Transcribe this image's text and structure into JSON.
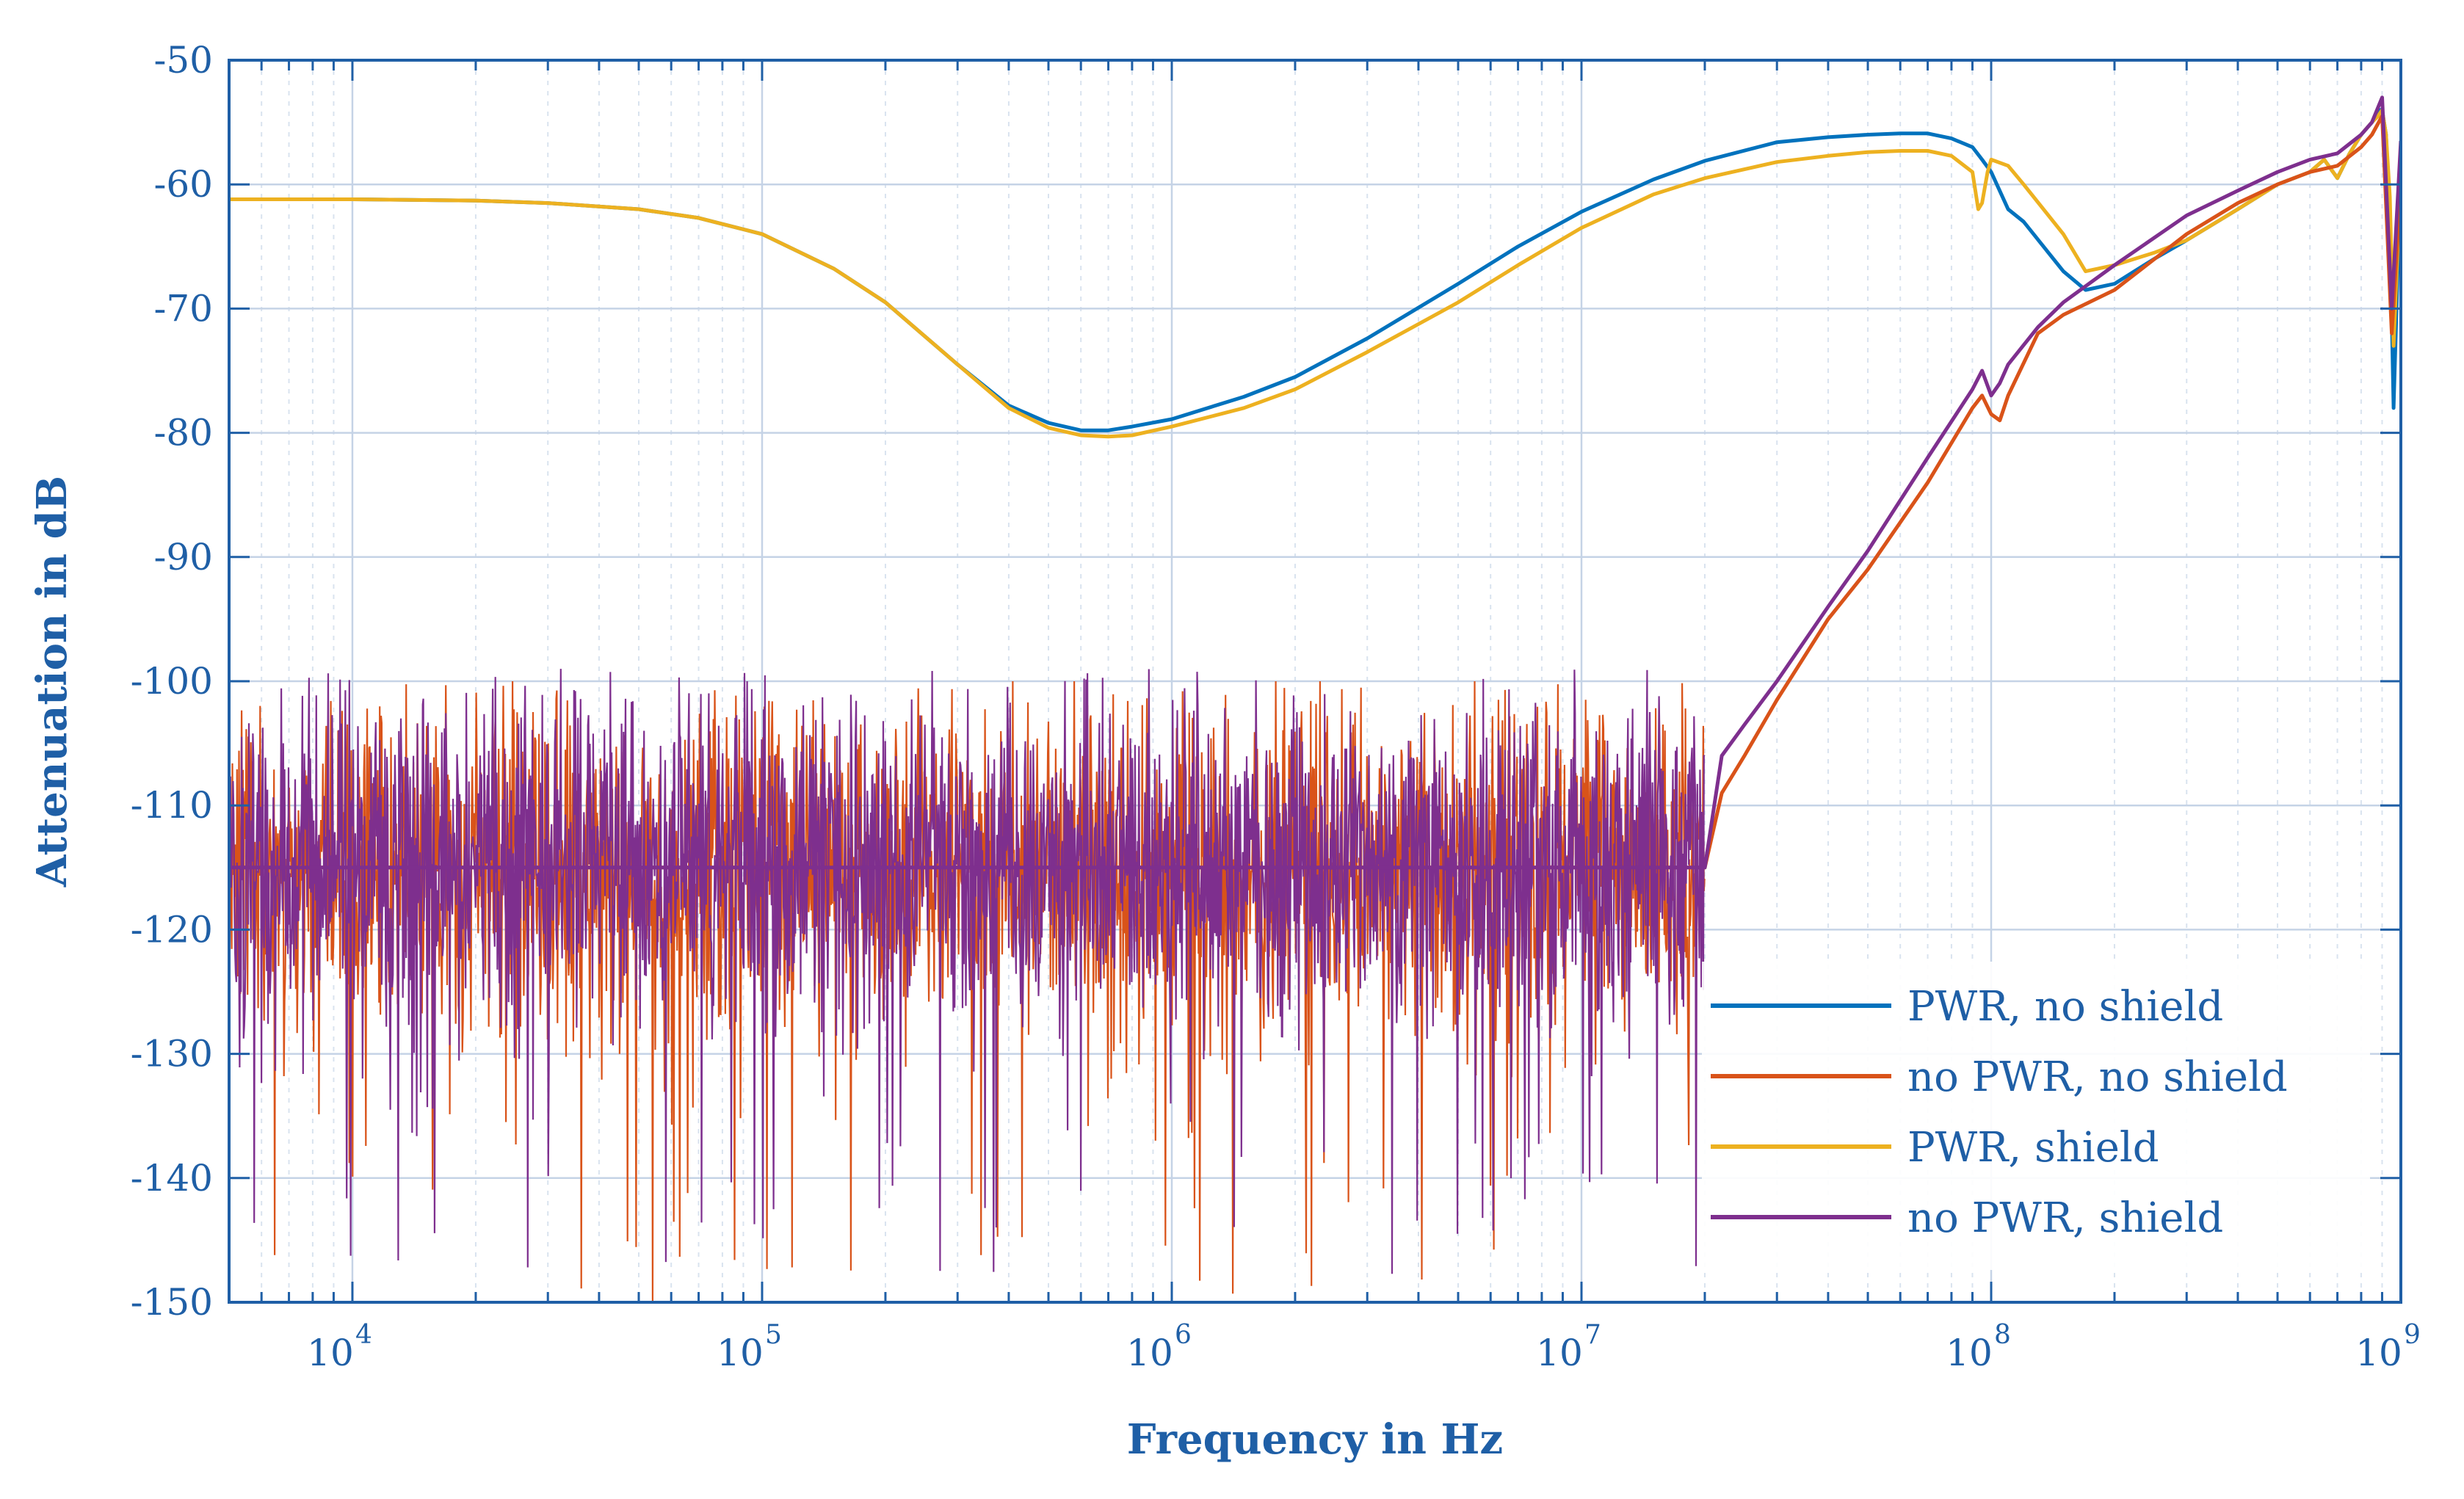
{
  "chart_data": {
    "type": "line",
    "title": "",
    "xlabel": "Frequency in Hz",
    "ylabel": "Attenuation in dB",
    "xscale": "log",
    "xlim": [
      5000,
      1000000000
    ],
    "ylim": [
      -150,
      -50
    ],
    "xticks": [
      {
        "base": "10",
        "exp": "4",
        "value": 10000
      },
      {
        "base": "10",
        "exp": "5",
        "value": 100000
      },
      {
        "base": "10",
        "exp": "6",
        "value": 1000000
      },
      {
        "base": "10",
        "exp": "7",
        "value": 10000000
      },
      {
        "base": "10",
        "exp": "8",
        "value": 100000000
      },
      {
        "base": "10",
        "exp": "9",
        "value": 1000000000
      }
    ],
    "yticks": [
      "-50",
      "-60",
      "-70",
      "-80",
      "-90",
      "-100",
      "-110",
      "-120",
      "-130",
      "-140",
      "-150"
    ],
    "grid": true,
    "legend_position": "bottom-right",
    "colors": {
      "axis": "#1f5fa6",
      "grid_major": "#c5d3e6",
      "grid_minor": "#d9e3ef"
    },
    "series": [
      {
        "name": "PWR, no shield",
        "color": "#0072bd",
        "x": [
          5000,
          10000,
          20000,
          30000,
          50000,
          70000,
          100000,
          150000,
          200000,
          300000,
          400000,
          500000,
          600000,
          700000,
          800000,
          1000000,
          1500000,
          2000000,
          3000000,
          5000000,
          7000000,
          10000000,
          15000000,
          20000000,
          30000000,
          40000000,
          50000000,
          60000000,
          70000000,
          80000000,
          90000000,
          95000000,
          100000000,
          110000000,
          120000000,
          150000000,
          170000000,
          200000000,
          250000000,
          300000000,
          400000000,
          500000000,
          600000000,
          650000000,
          700000000,
          750000000,
          800000000,
          850000000,
          880000000,
          900000000,
          920000000,
          940000000,
          960000000,
          1000000000
        ],
        "y": [
          -61.2,
          -61.2,
          -61.3,
          -61.5,
          -62.0,
          -62.7,
          -64.0,
          -66.8,
          -69.5,
          -74.5,
          -77.8,
          -79.2,
          -79.8,
          -79.8,
          -79.5,
          -78.9,
          -77.1,
          -75.5,
          -72.4,
          -68.0,
          -65.0,
          -62.2,
          -59.6,
          -58.1,
          -56.6,
          -56.2,
          -56.0,
          -55.9,
          -55.9,
          -56.3,
          -57.0,
          -58.0,
          -59.0,
          -62.0,
          -63.0,
          -67.0,
          -68.5,
          -68.0,
          -66.0,
          -64.5,
          -62.0,
          -60.0,
          -59.0,
          -58.0,
          -59.5,
          -57.5,
          -56.0,
          -55.0,
          -54.0,
          -54.0,
          -56.0,
          -63.0,
          -78.0,
          -58.0
        ]
      },
      {
        "name": "no PWR, no shield",
        "color": "#d95319",
        "x": [
          5000,
          20000000,
          22000000,
          25000000,
          30000000,
          40000000,
          50000000,
          70000000,
          90000000,
          95000000,
          100000000,
          105000000,
          110000000,
          130000000,
          150000000,
          200000000,
          300000000,
          400000000,
          500000000,
          600000000,
          700000000,
          800000000,
          850000000,
          900000000,
          950000000,
          1000000000
        ],
        "y": [
          -115.0,
          -115.0,
          -109.0,
          -106.0,
          -101.5,
          -95.0,
          -91.0,
          -84.0,
          -78.0,
          -77.0,
          -78.5,
          -79.0,
          -77.0,
          -72.0,
          -70.5,
          -68.5,
          -64.0,
          -61.5,
          -60.0,
          -59.0,
          -58.5,
          -57.0,
          -56.0,
          -54.5,
          -72.0,
          -60.0
        ],
        "noise": {
          "x_range": [
            5000,
            20000000
          ],
          "mean": -115.0,
          "min": -150.0,
          "max": -100.0
        }
      },
      {
        "name": "PWR, shield",
        "color": "#edb120",
        "x": [
          5000,
          10000,
          20000,
          30000,
          50000,
          70000,
          100000,
          150000,
          200000,
          300000,
          400000,
          500000,
          600000,
          700000,
          800000,
          1000000,
          1500000,
          2000000,
          3000000,
          5000000,
          7000000,
          10000000,
          15000000,
          20000000,
          30000000,
          40000000,
          50000000,
          60000000,
          70000000,
          80000000,
          90000000,
          93000000,
          95000000,
          98000000,
          100000000,
          110000000,
          120000000,
          150000000,
          170000000,
          200000000,
          250000000,
          300000000,
          400000000,
          500000000,
          600000000,
          650000000,
          700000000,
          750000000,
          800000000,
          850000000,
          880000000,
          900000000,
          920000000,
          940000000,
          960000000,
          1000000000
        ],
        "y": [
          -61.2,
          -61.2,
          -61.3,
          -61.5,
          -62.0,
          -62.7,
          -64.0,
          -66.8,
          -69.5,
          -74.5,
          -78.0,
          -79.6,
          -80.2,
          -80.3,
          -80.2,
          -79.5,
          -78.0,
          -76.5,
          -73.5,
          -69.5,
          -66.5,
          -63.5,
          -60.8,
          -59.5,
          -58.2,
          -57.7,
          -57.4,
          -57.3,
          -57.3,
          -57.7,
          -59.0,
          -62.0,
          -61.5,
          -59.0,
          -58.0,
          -58.5,
          -60.0,
          -64.0,
          -67.0,
          -66.5,
          -65.5,
          -64.5,
          -62.0,
          -60.0,
          -59.0,
          -58.0,
          -59.5,
          -57.5,
          -56.0,
          -55.0,
          -54.5,
          -54.0,
          -56.0,
          -61.0,
          -73.0,
          -59.0
        ]
      },
      {
        "name": "no PWR, shield",
        "color": "#7e2f8e",
        "x": [
          5000,
          20000000,
          22000000,
          25000000,
          30000000,
          40000000,
          50000000,
          70000000,
          90000000,
          95000000,
          100000000,
          105000000,
          110000000,
          130000000,
          150000000,
          200000000,
          300000000,
          400000000,
          500000000,
          600000000,
          700000000,
          800000000,
          850000000,
          900000000,
          950000000,
          1000000000
        ],
        "y": [
          -115.0,
          -115.0,
          -106.0,
          -103.5,
          -100.0,
          -94.0,
          -89.5,
          -82.0,
          -76.5,
          -75.0,
          -77.0,
          -76.0,
          -74.5,
          -71.5,
          -69.5,
          -66.5,
          -62.5,
          -60.5,
          -59.0,
          -58.0,
          -57.5,
          -56.0,
          -55.0,
          -53.0,
          -70.0,
          -56.5
        ],
        "noise": {
          "x_range": [
            5000,
            20000000
          ],
          "mean": -115.0,
          "min": -148.0,
          "max": -99.0
        }
      }
    ]
  }
}
